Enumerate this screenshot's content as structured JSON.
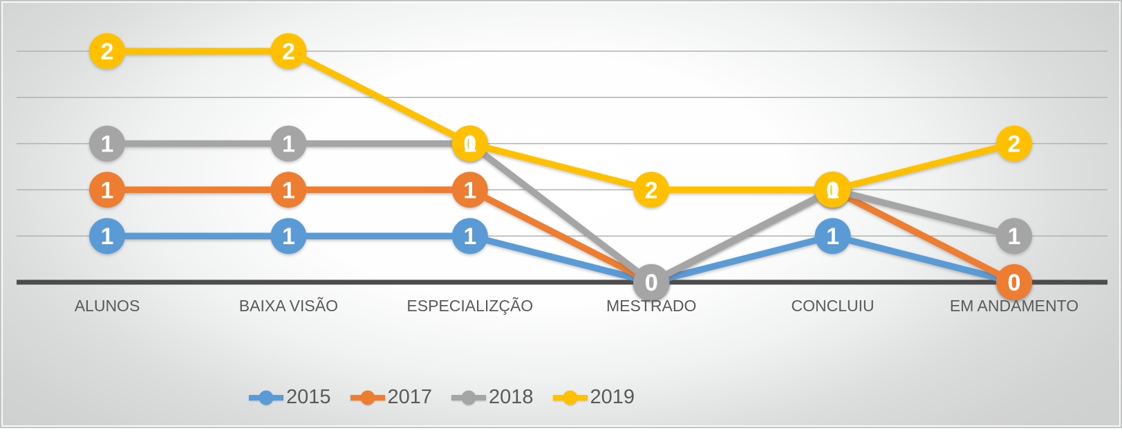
{
  "chart_data": {
    "type": "line",
    "stacked": true,
    "title": "",
    "categories": [
      "ALUNOS",
      "BAIXA VISÃO",
      "ESPECIALIZÇÃO",
      "MESTRADO",
      "CONCLUIU",
      "EM ANDAMENTO"
    ],
    "series": [
      {
        "name": "2015",
        "color": "#5B9BD5",
        "values": [
          1,
          1,
          1,
          0,
          1,
          0
        ]
      },
      {
        "name": "2017",
        "color": "#ED7D31",
        "values": [
          1,
          1,
          1,
          0,
          1,
          0
        ]
      },
      {
        "name": "2018",
        "color": "#A5A5A5",
        "values": [
          1,
          1,
          1,
          0,
          0,
          1
        ]
      },
      {
        "name": "2019",
        "color": "#FFC000",
        "values": [
          2,
          2,
          0,
          2,
          0,
          2
        ]
      }
    ],
    "value_axis": {
      "min": 0,
      "max": 5,
      "major_unit": 1,
      "tick_labels_visible": false
    },
    "gridlines": true,
    "data_labels": true,
    "legend": {
      "position": "bottom",
      "entries": [
        "2015",
        "2017",
        "2018",
        "2019"
      ]
    }
  },
  "styles": {
    "gridline_color": "#b0b1b1",
    "axis_color": "#4c4c4c",
    "category_label_color": "#595959",
    "data_label_color": "#ffffff",
    "legend_text_color": "#595959"
  }
}
